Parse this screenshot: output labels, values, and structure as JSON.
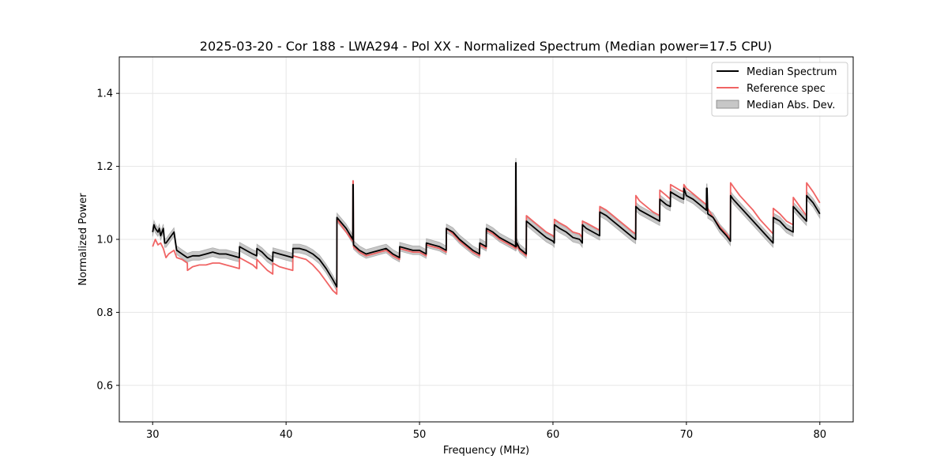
{
  "chart_data": {
    "type": "line",
    "title": "2025-03-20 - Cor 188 - LWA294 - Pol XX - Normalized Spectrum (Median power=17.5 CPU)",
    "xlabel": "Frequency (MHz)",
    "ylabel": "Normalized Power",
    "xlim": [
      27.5,
      82.5
    ],
    "ylim": [
      0.5,
      1.5
    ],
    "xticks": [
      30,
      40,
      50,
      60,
      70,
      80
    ],
    "yticks": [
      0.6,
      0.8,
      1.0,
      1.2,
      1.4
    ],
    "xtick_labels": [
      "30",
      "40",
      "50",
      "60",
      "70",
      "80"
    ],
    "ytick_labels": [
      "0.6",
      "0.8",
      "1.0",
      "1.2",
      "1.4"
    ],
    "grid": true,
    "legend_position": "top-right",
    "legend": [
      "Median Spectrum",
      "Reference spec",
      "Median Abs. Dev."
    ],
    "colors": {
      "median": "#000000",
      "reference": "#f06464",
      "mad_fill": "#b4b4b4",
      "mad_edge": "#808080",
      "grid": "#e6e6e6"
    },
    "mad_halfwidth": 0.012,
    "series": [
      {
        "name": "Median Spectrum",
        "x": [
          30.0,
          30.1,
          30.2,
          30.3,
          30.4,
          30.5,
          30.6,
          30.7,
          30.8,
          30.9,
          31.0,
          31.2,
          31.4,
          31.6,
          31.8,
          31.81,
          32.2,
          32.6,
          32.61,
          33.0,
          33.5,
          34.0,
          34.5,
          35.0,
          35.5,
          36.0,
          36.5,
          36.51,
          37.0,
          37.5,
          37.8,
          37.81,
          38.2,
          38.6,
          39.0,
          39.01,
          39.5,
          40.0,
          40.5,
          40.51,
          41.0,
          41.5,
          42.0,
          42.5,
          43.0,
          43.5,
          43.8,
          43.81,
          44.5,
          45.0,
          45.01,
          45.03,
          45.05,
          45.5,
          46.0,
          46.5,
          47.0,
          47.5,
          48.0,
          48.5,
          48.51,
          49.0,
          49.5,
          50.0,
          50.5,
          50.51,
          51.0,
          51.5,
          52.0,
          52.01,
          52.5,
          53.0,
          53.5,
          54.0,
          54.5,
          54.51,
          55.0,
          55.01,
          55.5,
          56.0,
          56.5,
          57.0,
          57.2,
          57.21,
          57.23,
          57.25,
          57.3,
          57.5,
          58.0,
          58.01,
          58.5,
          59.0,
          59.5,
          60.0,
          60.1,
          60.11,
          60.5,
          61.0,
          61.5,
          62.0,
          62.2,
          62.21,
          62.5,
          63.0,
          63.5,
          63.51,
          64.0,
          64.5,
          65.0,
          65.5,
          66.0,
          66.2,
          66.21,
          66.5,
          67.0,
          67.5,
          68.0,
          68.01,
          68.5,
          68.8,
          68.81,
          69.5,
          69.8,
          69.81,
          70.0,
          70.5,
          71.0,
          71.5,
          71.51,
          71.55,
          71.6,
          72.0,
          72.5,
          73.0,
          73.3,
          73.31,
          73.5,
          74.0,
          74.5,
          75.0,
          75.5,
          76.0,
          76.5,
          76.51,
          77.0,
          77.5,
          78.0,
          78.01,
          78.5,
          79.0,
          79.01,
          79.5,
          80.0
        ],
        "values": [
          1.02,
          1.04,
          1.03,
          1.025,
          1.02,
          1.03,
          1.01,
          1.02,
          1.03,
          0.99,
          0.99,
          1.0,
          1.01,
          1.02,
          0.97,
          0.97,
          0.96,
          0.95,
          0.95,
          0.955,
          0.955,
          0.96,
          0.965,
          0.96,
          0.96,
          0.955,
          0.95,
          0.98,
          0.97,
          0.96,
          0.955,
          0.975,
          0.965,
          0.95,
          0.94,
          0.965,
          0.96,
          0.955,
          0.95,
          0.975,
          0.975,
          0.97,
          0.96,
          0.945,
          0.92,
          0.89,
          0.87,
          1.06,
          1.03,
          1.0,
          1.15,
          1.15,
          0.985,
          0.97,
          0.96,
          0.965,
          0.97,
          0.975,
          0.96,
          0.95,
          0.98,
          0.975,
          0.97,
          0.97,
          0.96,
          0.99,
          0.985,
          0.98,
          0.97,
          1.03,
          1.02,
          1.0,
          0.985,
          0.97,
          0.96,
          0.99,
          0.98,
          1.03,
          1.02,
          1.005,
          0.995,
          0.985,
          0.98,
          1.21,
          1.21,
          0.98,
          0.99,
          0.975,
          0.96,
          1.05,
          1.035,
          1.02,
          1.005,
          0.995,
          0.99,
          1.04,
          1.03,
          1.02,
          1.005,
          1.0,
          0.99,
          1.04,
          1.03,
          1.02,
          1.01,
          1.075,
          1.065,
          1.05,
          1.035,
          1.02,
          1.005,
          1.0,
          1.09,
          1.08,
          1.07,
          1.06,
          1.05,
          1.11,
          1.095,
          1.09,
          1.13,
          1.115,
          1.11,
          1.14,
          1.12,
          1.11,
          1.095,
          1.08,
          1.14,
          1.14,
          1.07,
          1.06,
          1.03,
          1.01,
          0.995,
          1.12,
          1.11,
          1.09,
          1.07,
          1.05,
          1.03,
          1.01,
          0.99,
          1.06,
          1.05,
          1.03,
          1.02,
          1.09,
          1.07,
          1.05,
          1.12,
          1.1,
          1.07
        ]
      },
      {
        "name": "Reference spec",
        "x": [
          30.0,
          30.2,
          30.4,
          30.6,
          30.8,
          31.0,
          31.2,
          31.4,
          31.6,
          31.8,
          31.81,
          32.2,
          32.6,
          32.61,
          33.0,
          33.5,
          34.0,
          34.5,
          35.0,
          35.5,
          36.0,
          36.5,
          36.51,
          37.0,
          37.5,
          37.8,
          37.81,
          38.2,
          38.6,
          39.0,
          39.01,
          39.5,
          40.0,
          40.5,
          40.51,
          41.0,
          41.5,
          42.0,
          42.5,
          43.0,
          43.5,
          43.8,
          43.81,
          44.5,
          45.0,
          45.01,
          45.03,
          45.05,
          45.5,
          46.0,
          46.5,
          47.0,
          47.5,
          48.0,
          48.5,
          48.51,
          49.0,
          49.5,
          50.0,
          50.5,
          50.51,
          51.0,
          51.5,
          52.0,
          52.01,
          52.5,
          53.0,
          53.5,
          54.0,
          54.5,
          54.51,
          55.0,
          55.01,
          55.5,
          56.0,
          56.5,
          57.0,
          57.2,
          57.21,
          57.23,
          57.25,
          57.3,
          57.5,
          58.0,
          58.01,
          58.5,
          59.0,
          59.5,
          60.0,
          60.1,
          60.11,
          60.5,
          61.0,
          61.5,
          62.0,
          62.2,
          62.21,
          62.5,
          63.0,
          63.5,
          63.51,
          64.0,
          64.5,
          65.0,
          65.5,
          66.0,
          66.2,
          66.21,
          66.5,
          67.0,
          67.5,
          68.0,
          68.01,
          68.5,
          68.8,
          68.81,
          69.5,
          69.8,
          69.81,
          70.0,
          70.5,
          71.0,
          71.5,
          71.51,
          71.55,
          71.6,
          72.0,
          72.5,
          73.0,
          73.3,
          73.31,
          73.5,
          74.0,
          74.5,
          75.0,
          75.5,
          76.0,
          76.5,
          76.51,
          77.0,
          77.5,
          78.0,
          78.01,
          78.5,
          79.0,
          79.01,
          79.5,
          80.0
        ],
        "values": [
          0.98,
          1.0,
          0.985,
          0.99,
          0.975,
          0.95,
          0.96,
          0.965,
          0.97,
          0.95,
          0.95,
          0.945,
          0.935,
          0.915,
          0.925,
          0.93,
          0.93,
          0.935,
          0.935,
          0.93,
          0.925,
          0.92,
          0.95,
          0.94,
          0.93,
          0.92,
          0.945,
          0.93,
          0.915,
          0.905,
          0.935,
          0.925,
          0.92,
          0.915,
          0.955,
          0.95,
          0.945,
          0.93,
          0.91,
          0.885,
          0.86,
          0.85,
          1.055,
          1.02,
          0.995,
          1.16,
          1.16,
          0.98,
          0.965,
          0.955,
          0.96,
          0.965,
          0.97,
          0.955,
          0.945,
          0.975,
          0.97,
          0.965,
          0.965,
          0.955,
          0.985,
          0.98,
          0.975,
          0.965,
          1.03,
          1.015,
          0.995,
          0.98,
          0.965,
          0.955,
          0.985,
          0.975,
          1.025,
          1.015,
          1.0,
          0.99,
          0.98,
          0.975,
          1.09,
          1.09,
          0.975,
          0.985,
          0.97,
          0.955,
          1.065,
          1.05,
          1.035,
          1.02,
          1.01,
          1.005,
          1.055,
          1.045,
          1.035,
          1.02,
          1.015,
          1.005,
          1.05,
          1.045,
          1.035,
          1.025,
          1.09,
          1.08,
          1.065,
          1.05,
          1.035,
          1.02,
          1.015,
          1.12,
          1.105,
          1.09,
          1.075,
          1.065,
          1.135,
          1.12,
          1.11,
          1.15,
          1.135,
          1.13,
          1.15,
          1.14,
          1.125,
          1.11,
          1.095,
          1.08,
          1.08,
          1.085,
          1.06,
          1.035,
          1.015,
          1.0,
          1.155,
          1.145,
          1.12,
          1.1,
          1.08,
          1.055,
          1.035,
          1.015,
          1.085,
          1.07,
          1.05,
          1.04,
          1.115,
          1.09,
          1.065,
          1.155,
          1.13,
          1.1
        ]
      }
    ]
  }
}
